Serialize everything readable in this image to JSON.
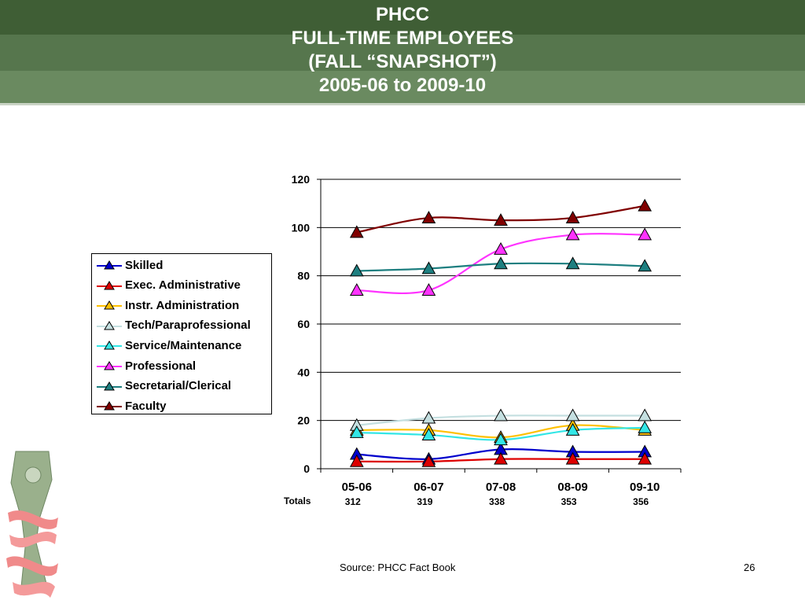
{
  "header": {
    "title_lines": [
      "PHCC",
      "FULL-TIME EMPLOYEES",
      "(FALL “SNAPSHOT”)",
      "2005-06 to 2009-10"
    ]
  },
  "chart_data": {
    "type": "line",
    "categories": [
      "05-06",
      "06-07",
      "07-08",
      "08-09",
      "09-10"
    ],
    "ylim": [
      0,
      120
    ],
    "yticks": [
      0,
      20,
      40,
      60,
      80,
      100,
      120
    ],
    "grid": true,
    "legend_position": "left",
    "series": [
      {
        "name": "Skilled",
        "color": "#0000cc",
        "marker": "triangle",
        "values": [
          6,
          4,
          8,
          7,
          7
        ]
      },
      {
        "name": "Exec. Administrative",
        "color": "#dd0000",
        "marker": "triangle",
        "values": [
          3,
          3,
          4,
          4,
          4
        ]
      },
      {
        "name": "Instr. Administration",
        "color": "#ffc000",
        "marker": "triangle",
        "values": [
          16,
          16,
          13,
          18,
          16
        ]
      },
      {
        "name": "Tech/Paraprofessional",
        "color": "#c4dfe0",
        "marker": "triangle",
        "values": [
          18,
          21,
          22,
          22,
          22
        ]
      },
      {
        "name": "Service/Maintenance",
        "color": "#33e6e6",
        "marker": "triangle",
        "values": [
          15,
          14,
          12,
          16,
          17
        ]
      },
      {
        "name": "Professional",
        "color": "#ff33ff",
        "marker": "triangle",
        "values": [
          74,
          74,
          91,
          97,
          97
        ]
      },
      {
        "name": "Secretarial/Clerical",
        "color": "#1e7f80",
        "marker": "triangle",
        "values": [
          82,
          83,
          85,
          85,
          84
        ]
      },
      {
        "name": "Faculty",
        "color": "#800000",
        "marker": "triangle",
        "values": [
          98,
          104,
          103,
          104,
          109
        ]
      }
    ],
    "totals_label": "Totals",
    "totals": [
      "312",
      "319",
      "338",
      "353",
      "356"
    ]
  },
  "footer": {
    "source": "Source: PHCC Fact Book",
    "page_number": "26"
  }
}
